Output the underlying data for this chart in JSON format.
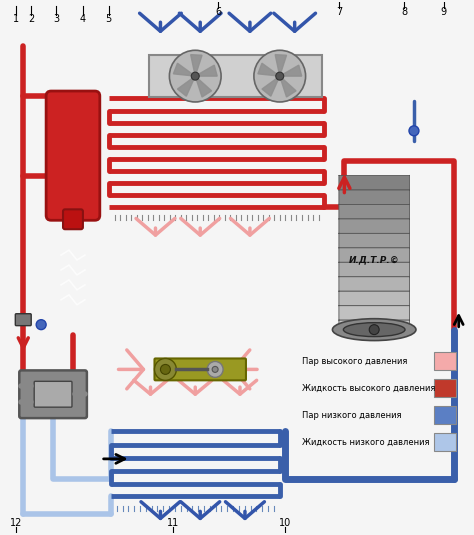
{
  "background_color": "#f5f5f5",
  "colors": {
    "pipe_red": "#cc2222",
    "pipe_blue": "#3a5faa",
    "pipe_light_blue": "#aac4e8",
    "arrow_pink": "#f0a0a0",
    "arrow_blue_dark": "#3355aa",
    "legend_pink": "#f4aaaa",
    "legend_red": "#c0392b",
    "legend_blue": "#5b7fc4",
    "legend_light_blue": "#aec6e8"
  },
  "legend": [
    {
      "label": "Пар высокого давления",
      "color": "#f4aaaa"
    },
    {
      "label": "Жидкость высокого давления",
      "color": "#c0392b"
    },
    {
      "label": "Пар низкого давления",
      "color": "#5b7fc4"
    },
    {
      "label": "Жидкость низкого давления",
      "color": "#aec6e8"
    }
  ]
}
